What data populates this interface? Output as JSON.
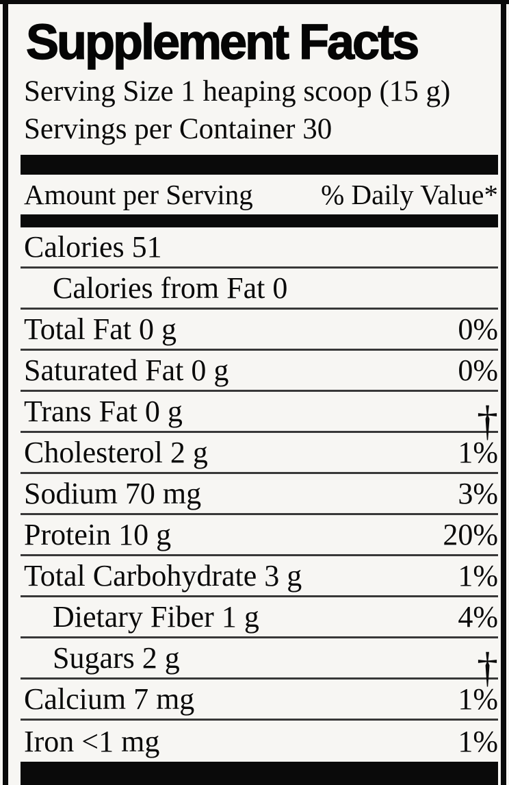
{
  "colors": {
    "ink": "#0a0a0a",
    "background": "#f7f6f3",
    "rule": "#383838"
  },
  "title": "Supplement Facts",
  "serving_info": {
    "serving_size": "Serving Size 1 heaping scoop (15 g)",
    "servings_per_container": "Servings per Container 30"
  },
  "table_header": {
    "amount": "Amount per Serving",
    "daily_value": "% Daily Value*"
  },
  "rows": [
    {
      "text": "Calories 51",
      "dv": ""
    },
    {
      "text": "Calories from Fat 0",
      "dv": ""
    },
    {
      "text": "Total Fat 0 g",
      "dv": "0%"
    },
    {
      "text": "Saturated Fat 0 g",
      "dv": "0%"
    },
    {
      "text": "Trans Fat 0 g",
      "dv": "†"
    },
    {
      "text": "Cholesterol 2 g",
      "dv": "1%"
    },
    {
      "text": "Sodium 70 mg",
      "dv": "3%"
    },
    {
      "text": "Protein 10 g",
      "dv": "20%"
    },
    {
      "text": "Total Carbohydrate 3 g",
      "dv": "1%"
    },
    {
      "text": "Dietary Fiber 1 g",
      "dv": "4%"
    },
    {
      "text": "Sugars 2 g",
      "dv": "†"
    },
    {
      "text": "Calcium 7 mg",
      "dv": "1%"
    },
    {
      "text": "Iron <1 mg",
      "dv": "1%"
    }
  ]
}
